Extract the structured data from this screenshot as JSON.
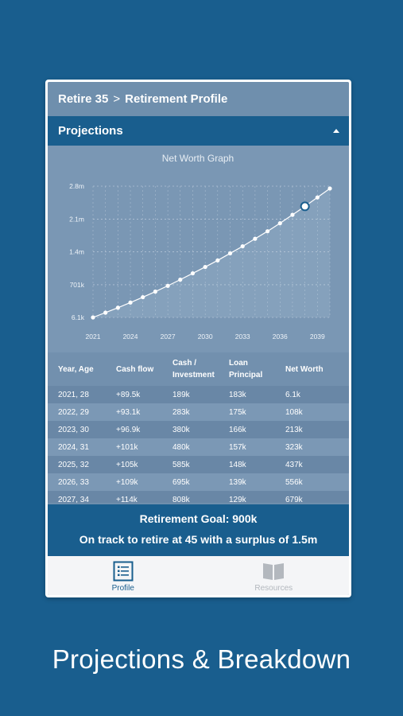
{
  "breadcrumb": {
    "app": "Retire 35",
    "separator": ">",
    "page": "Retirement Profile"
  },
  "section": {
    "title": "Projections"
  },
  "chart_data": {
    "type": "line",
    "title": "Net Worth Graph",
    "x": [
      2021,
      2022,
      2023,
      2024,
      2025,
      2026,
      2027,
      2028,
      2029,
      2030,
      2031,
      2032,
      2033,
      2034,
      2035,
      2036,
      2037,
      2038,
      2039,
      2040
    ],
    "values": [
      6100,
      108000,
      213000,
      323000,
      437000,
      556000,
      679000,
      810000,
      945000,
      1080000,
      1220000,
      1370000,
      1520000,
      1680000,
      1840000,
      2010000,
      2190000,
      2370000,
      2560000,
      2750000
    ],
    "highlight_index": 17,
    "yticks": [
      {
        "value": 6100,
        "label": "6.1k"
      },
      {
        "value": 701000,
        "label": "701k"
      },
      {
        "value": 1400000,
        "label": "1.4m"
      },
      {
        "value": 2100000,
        "label": "2.1m"
      },
      {
        "value": 2800000,
        "label": "2.8m"
      }
    ],
    "xticks": [
      2021,
      2024,
      2027,
      2030,
      2033,
      2036,
      2039
    ],
    "ylim": [
      6100,
      2800000
    ],
    "xlim": [
      2021,
      2040
    ],
    "grid": true,
    "colors": {
      "line": "#ffffff",
      "fill": "#8ea9c2",
      "highlight": "#195e8e"
    }
  },
  "table": {
    "headers": [
      "Year, Age",
      "Cash flow",
      "Cash /\nInvestment",
      "Loan\nPrincipal",
      "Net Worth"
    ],
    "rows": [
      [
        "2021, 28",
        "+89.5k",
        "189k",
        "183k",
        "6.1k"
      ],
      [
        "2022, 29",
        "+93.1k",
        "283k",
        "175k",
        "108k"
      ],
      [
        "2023, 30",
        "+96.9k",
        "380k",
        "166k",
        "213k"
      ],
      [
        "2024, 31",
        "+101k",
        "480k",
        "157k",
        "323k"
      ],
      [
        "2025, 32",
        "+105k",
        "585k",
        "148k",
        "437k"
      ],
      [
        "2026, 33",
        "+109k",
        "695k",
        "139k",
        "556k"
      ],
      [
        "2027, 34",
        "+114k",
        "808k",
        "129k",
        "679k"
      ]
    ]
  },
  "goal": {
    "line1": "Retirement Goal: 900k",
    "line2": "On track to retire at 45 with a surplus of 1.5m"
  },
  "tabs": [
    {
      "label": "Profile",
      "icon": "list-icon",
      "active": true
    },
    {
      "label": "Resources",
      "icon": "book-icon",
      "active": false
    }
  ],
  "caption": "Projections & Breakdown"
}
